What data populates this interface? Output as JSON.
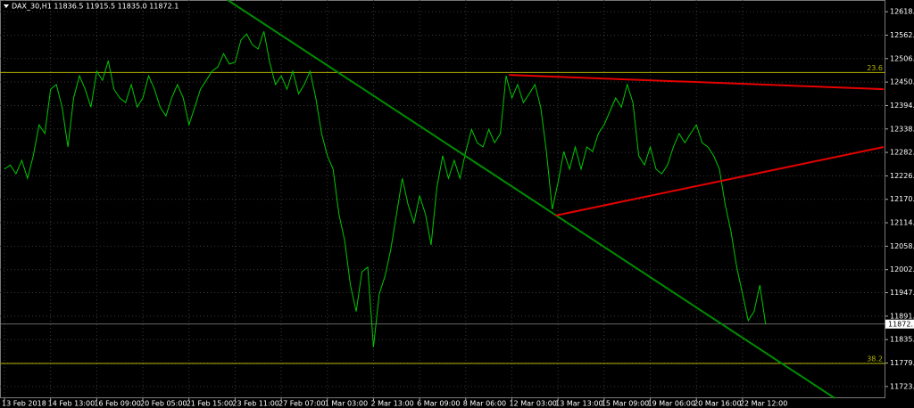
{
  "chart_data": {
    "type": "line",
    "title": "DAX_30,H1  11836.5 11915.5 11835.0 11872.1",
    "color": "#00c800",
    "grid": true,
    "ylim": [
      11695,
      12646
    ],
    "yticks": [
      {
        "value": 12618,
        "label": "12618.0"
      },
      {
        "value": 12562,
        "label": "12562.0"
      },
      {
        "value": 12506,
        "label": "12506.0"
      },
      {
        "value": 12450,
        "label": "12450.0"
      },
      {
        "value": 12394,
        "label": "12394.0"
      },
      {
        "value": 12338,
        "label": "12338.0"
      },
      {
        "value": 12282,
        "label": "12282.0"
      },
      {
        "value": 12226,
        "label": "12226.0"
      },
      {
        "value": 12170,
        "label": "12170.0"
      },
      {
        "value": 12114,
        "label": "12114.0"
      },
      {
        "value": 12058,
        "label": "12058.0"
      },
      {
        "value": 12002,
        "label": "12002.0"
      },
      {
        "value": 11947,
        "label": "11947.0"
      },
      {
        "value": 11891,
        "label": "11891.0"
      },
      {
        "value": 11835,
        "label": "11835.0"
      },
      {
        "value": 11779,
        "label": "11779.0"
      },
      {
        "value": 11723,
        "label": "11723.0"
      }
    ],
    "categories": [
      "13 Feb 2018",
      null,
      null,
      null,
      null,
      null,
      null,
      null,
      "14 Feb 13:00",
      null,
      null,
      null,
      null,
      null,
      null,
      null,
      "16 Feb 09:00",
      null,
      null,
      null,
      null,
      null,
      null,
      null,
      "20 Feb 05:00",
      null,
      null,
      null,
      null,
      null,
      null,
      null,
      "21 Feb 15:00",
      null,
      null,
      null,
      null,
      null,
      null,
      null,
      "23 Feb 11:00",
      null,
      null,
      null,
      null,
      null,
      null,
      null,
      "27 Feb 07:00",
      null,
      null,
      null,
      null,
      null,
      null,
      null,
      "1 Mar 03:00",
      null,
      null,
      null,
      null,
      null,
      null,
      null,
      "2 Mar 13:00",
      null,
      null,
      null,
      null,
      null,
      null,
      null,
      "6 Mar 09:00",
      null,
      null,
      null,
      null,
      null,
      null,
      null,
      "8 Mar 06:00",
      null,
      null,
      null,
      null,
      null,
      null,
      null,
      "12 Mar 03:00",
      null,
      null,
      null,
      null,
      null,
      null,
      null,
      "13 Mar 13:00",
      null,
      null,
      null,
      null,
      null,
      null,
      null,
      "15 Mar 09:00",
      null,
      null,
      null,
      null,
      null,
      null,
      null,
      "19 Mar 06:00",
      null,
      null,
      null,
      null,
      null,
      null,
      null,
      "20 Mar 16:00",
      null,
      null,
      null,
      null,
      null,
      null,
      null,
      "22 Mar 12:00",
      null,
      null,
      null,
      null
    ],
    "values": [
      12242,
      12252,
      12231,
      12263,
      12220,
      12274,
      12348,
      12327,
      12433,
      12444,
      12390,
      12295,
      12412,
      12465,
      12433,
      12390,
      12476,
      12454,
      12501,
      12433,
      12412,
      12401,
      12444,
      12390,
      12412,
      12465,
      12433,
      12390,
      12369,
      12412,
      12444,
      12412,
      12348,
      12390,
      12433,
      12454,
      12476,
      12486,
      12518,
      12493,
      12497,
      12550,
      12565,
      12539,
      12529,
      12571,
      12497,
      12444,
      12465,
      12433,
      12476,
      12422,
      12444,
      12476,
      12412,
      12327,
      12274,
      12242,
      12135,
      12072,
      11965,
      11902,
      11997,
      12008,
      11817,
      11944,
      11987,
      12050,
      12135,
      12220,
      12157,
      12114,
      12178,
      12135,
      12061,
      12199,
      12274,
      12220,
      12263,
      12220,
      12284,
      12337,
      12305,
      12295,
      12337,
      12305,
      12327,
      12465,
      12412,
      12444,
      12401,
      12422,
      12444,
      12390,
      12284,
      12146,
      12210,
      12284,
      12242,
      12295,
      12242,
      12295,
      12284,
      12327,
      12348,
      12380,
      12412,
      12390,
      12444,
      12401,
      12274,
      12252,
      12295,
      12242,
      12231,
      12252,
      12295,
      12327,
      12305,
      12327,
      12348,
      12305,
      12295,
      12274,
      12242,
      12157,
      12093,
      12008,
      11944,
      11880,
      11902,
      11965,
      11872
    ],
    "trendlines": [
      {
        "color": "#008c00",
        "x": [
          38.7,
          144
        ],
        "y": [
          12646,
          11695
        ]
      },
      {
        "color": "#e60000",
        "x": [
          87.5,
          152.5
        ],
        "y": [
          12467,
          12433
        ]
      },
      {
        "color": "#e60000",
        "x": [
          95.5,
          152.5
        ],
        "y": [
          12131,
          12295
        ]
      }
    ],
    "levels": [
      {
        "value": 12473,
        "label": "23.6",
        "color": "#b4b400"
      },
      {
        "value": 11778,
        "label": "38.2",
        "color": "#b4b400"
      }
    ],
    "last_price": 11872.1
  }
}
